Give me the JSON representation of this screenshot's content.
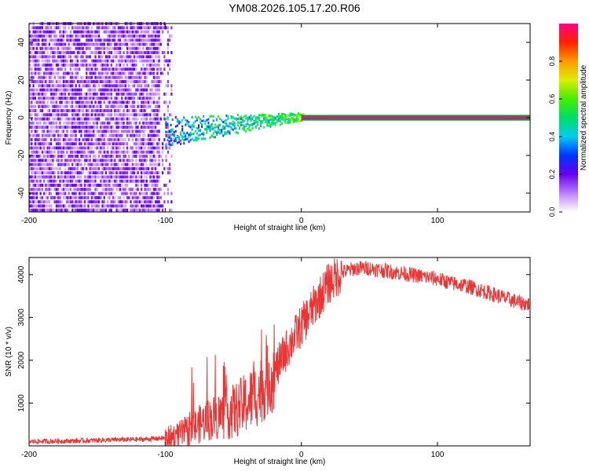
{
  "figure_title": "YM08.2026.105.17.20.R06",
  "chart_data": [
    {
      "type": "heatmap",
      "title": "YM08.2026.105.17.20.R06",
      "xlabel": "Height of straight line (km)",
      "ylabel": "Frequency (Hz)",
      "xlim": [
        -200,
        168
      ],
      "ylim": [
        -50,
        50
      ],
      "xticks": [
        -200,
        -100,
        0,
        100
      ],
      "yticks": [
        -40,
        -20,
        0,
        20,
        40
      ],
      "grid": false,
      "description_series": [
        {
          "name": "noise band",
          "x_range": [
            -200,
            -100
          ],
          "freq_range": [
            -50,
            50
          ],
          "amplitude": 0.1
        },
        {
          "name": "converging signal",
          "x_range": [
            -100,
            0
          ],
          "freq_start": -8,
          "freq_end": 0,
          "amplitude_range": [
            0.2,
            0.5
          ]
        },
        {
          "name": "steady tone",
          "x_range": [
            0,
            168
          ],
          "freq": 0,
          "amplitude": 1.0
        }
      ],
      "colorbar": {
        "label": "Normalized spectral amplitude",
        "ticks": [
          0.0,
          0.2,
          0.4,
          0.6,
          0.8
        ],
        "range": [
          0,
          1
        ]
      }
    },
    {
      "type": "line",
      "xlabel": "Height of straight line (km)",
      "ylabel": "SNR (10 * v/v)",
      "xlim": [
        -200,
        168
      ],
      "ylim": [
        0,
        4400
      ],
      "xticks": [
        -200,
        -100,
        0,
        100
      ],
      "yticks": [
        1000,
        2000,
        3000,
        4000
      ],
      "grid": false,
      "series": [
        {
          "name": "SNR",
          "color": "#ee3333",
          "x": [
            -200,
            -180,
            -160,
            -140,
            -120,
            -100,
            -90,
            -80,
            -70,
            -60,
            -50,
            -40,
            -30,
            -20,
            -10,
            0,
            10,
            20,
            30,
            40,
            50,
            60,
            70,
            80,
            90,
            100,
            110,
            120,
            130,
            140,
            150,
            160,
            168
          ],
          "y": [
            100,
            110,
            120,
            140,
            150,
            180,
            250,
            400,
            600,
            700,
            800,
            1000,
            1300,
            1700,
            2300,
            2800,
            3300,
            3800,
            4050,
            4150,
            4150,
            4100,
            4050,
            4000,
            3950,
            3900,
            3800,
            3750,
            3650,
            3550,
            3450,
            3350,
            3300
          ]
        }
      ]
    }
  ]
}
